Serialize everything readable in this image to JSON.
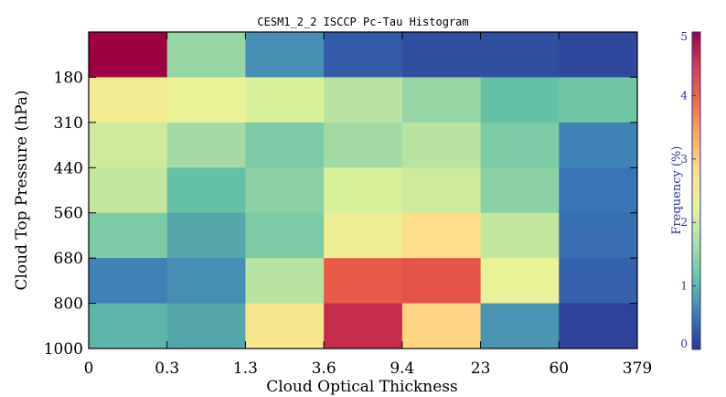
{
  "chart_data": {
    "type": "heatmap",
    "title": "CESM1_2_2 ISCCP Pc-Tau Histogram",
    "xlabel": "Cloud Optical Thickness",
    "ylabel": "Cloud Top Pressure (hPa)",
    "x_tick_labels": [
      "0",
      "0.3",
      "1.3",
      "3.6",
      "9.4",
      "23",
      "60",
      "379"
    ],
    "y_tick_labels": [
      "1000",
      "800",
      "680",
      "560",
      "440",
      "310",
      "180"
    ],
    "colorbar": {
      "label": "Frequency (%)",
      "range": [
        0,
        5
      ],
      "tick_labels": [
        "0",
        "1",
        "2",
        "3",
        "4",
        "5"
      ],
      "colormap": "Spectral_r",
      "stops": [
        "#2b3594",
        "#3b7cb8",
        "#66c2a5",
        "#abdda4",
        "#e6f598",
        "#fee08b",
        "#fdae61",
        "#f46d43",
        "#d53e4f",
        "#9e0142"
      ]
    },
    "rows_top_to_bottom": [
      {
        "pressure_bin": "above 180",
        "values": [
          5.0,
          1.5,
          0.7,
          0.3,
          0.2,
          0.2,
          0.15
        ]
      },
      {
        "pressure_bin": "180-310",
        "values": [
          2.5,
          2.3,
          2.1,
          1.8,
          1.5,
          1.1,
          1.2
        ]
      },
      {
        "pressure_bin": "310-440",
        "values": [
          2.0,
          1.6,
          1.3,
          1.6,
          1.8,
          1.3,
          0.6
        ]
      },
      {
        "pressure_bin": "440-560",
        "values": [
          1.9,
          1.1,
          1.4,
          2.1,
          2.0,
          1.4,
          0.5
        ]
      },
      {
        "pressure_bin": "560-680",
        "values": [
          1.3,
          0.9,
          1.3,
          2.4,
          2.8,
          1.9,
          0.45
        ]
      },
      {
        "pressure_bin": "680-800",
        "values": [
          0.6,
          0.7,
          1.8,
          4.1,
          4.2,
          2.3,
          0.35
        ]
      },
      {
        "pressure_bin": "800-1000",
        "values": [
          1.0,
          0.9,
          2.6,
          4.6,
          2.9,
          0.75,
          0.1
        ]
      }
    ],
    "grid": false,
    "legend": "colorbar-right"
  }
}
